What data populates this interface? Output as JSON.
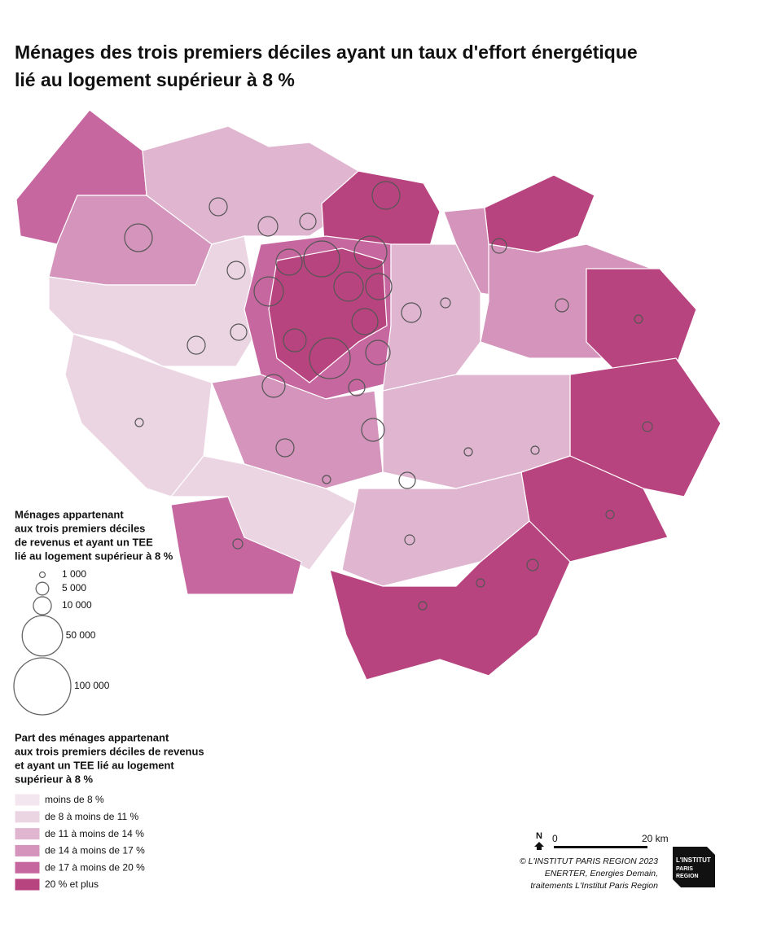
{
  "header": {
    "title_lines": [
      "Ménages des trois premiers déciles ayant un taux d'effort énergétique",
      "lié au logement supérieur à 8 %"
    ]
  },
  "size_legend": {
    "title_lines": [
      "Ménages appartenant",
      "aux trois premiers déciles",
      "de revenus et ayant un TEE",
      "lié au logement supérieur à 8 %"
    ],
    "items": [
      {
        "value": 1000,
        "label": "1 000"
      },
      {
        "value": 5000,
        "label": "5 000"
      },
      {
        "value": 10000,
        "label": "10 000"
      },
      {
        "value": 50000,
        "label": "50 000"
      },
      {
        "value": 100000,
        "label": "100 000"
      }
    ]
  },
  "color_legend": {
    "title_lines": [
      "Part des ménages appartenant",
      "aux trois premiers déciles de revenus",
      "et ayant un TEE lié au logement",
      "supérieur à 8 %"
    ],
    "classes": [
      {
        "label": "moins de 8 %",
        "color": "#f4e6ef"
      },
      {
        "label": "de 8 à moins de 11 %",
        "color": "#ebd5e3"
      },
      {
        "label": "de 11 à moins de 14 %",
        "color": "#e0b5d0"
      },
      {
        "label": "de 14 à moins de 17 %",
        "color": "#d494bb"
      },
      {
        "label": "de 17 à moins de 20 %",
        "color": "#c6679f"
      },
      {
        "label": "20 % et plus",
        "color": "#b8447f"
      }
    ]
  },
  "scale": {
    "north": "N",
    "start": "0",
    "end": "20 km"
  },
  "credits": [
    "© L'INSTITUT PARIS REGION 2023",
    "ENERTER, Energies Demain,",
    "traitements L'Institut Paris Region"
  ],
  "logo": [
    "L'INSTITUT",
    "PARIS",
    "REGION"
  ]
}
